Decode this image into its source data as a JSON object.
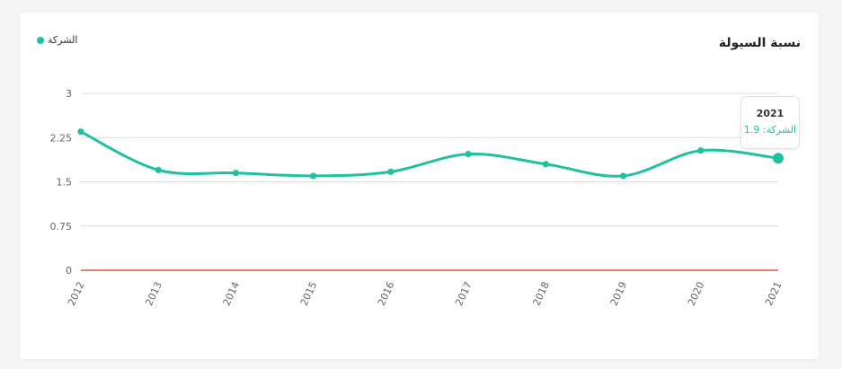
{
  "title": "نسبة السيولة",
  "legend": {
    "label": "الشركة",
    "color": "#20c1a1"
  },
  "tooltip": {
    "title": "2021",
    "value": "الشركة: 1.9"
  },
  "colors": {
    "series": "#20c1a1",
    "zero_line": "#e1574c",
    "grid": "#dcdcdc"
  },
  "chart_data": {
    "type": "line",
    "title": "نسبة السيولة",
    "x": [
      "2012",
      "2013",
      "2014",
      "2015",
      "2016",
      "2017",
      "2018",
      "2019",
      "2020",
      "2021"
    ],
    "series": [
      {
        "name": "الشركة",
        "values": [
          2.35,
          1.7,
          1.65,
          1.6,
          1.67,
          1.97,
          1.8,
          1.6,
          2.03,
          1.9
        ]
      }
    ],
    "y_ticks": [
      "0",
      "0.75",
      "1.5",
      "2.25",
      "3"
    ],
    "ylim": [
      0,
      3
    ],
    "grid": true,
    "legend_position": "top-left",
    "highlighted": "2021"
  }
}
